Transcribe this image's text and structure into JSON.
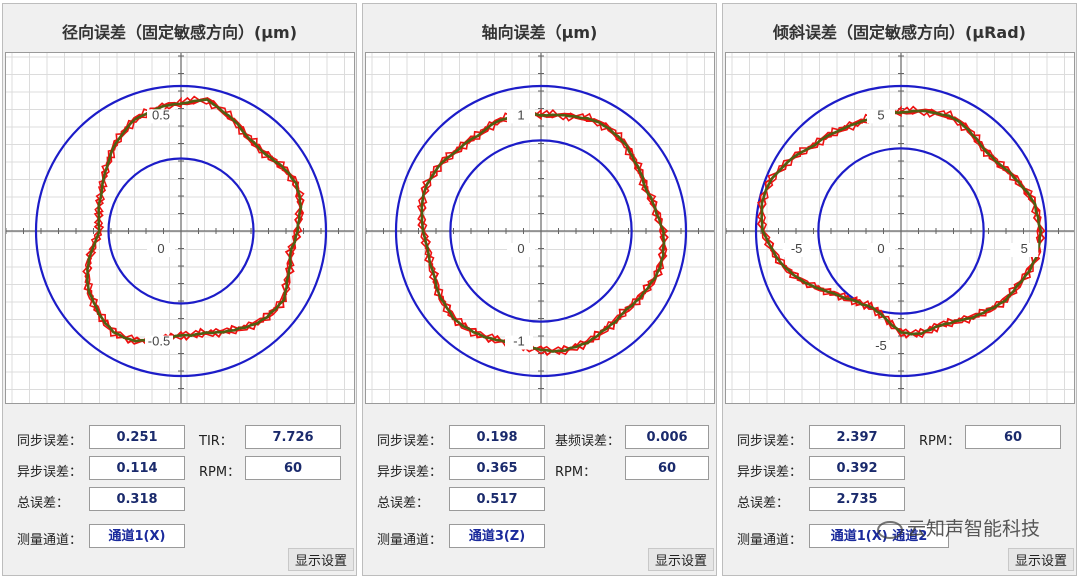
{
  "colors": {
    "ring": "#1c1cc8",
    "trace_red": "#ee1111",
    "trace_dark": "#4f5f12",
    "value_text": "#1a2a6c",
    "panel_bg": "#f0f0f0"
  },
  "panels": [
    {
      "title": "径向误差（固定敏感方向）(μm)",
      "chart_data": {
        "type": "polar",
        "axis_range": [
          -0.75,
          0.75
        ],
        "rings": [
          0.5,
          1.0
        ],
        "tick_labels": [
          "0.5",
          "0",
          "-0.5"
        ],
        "series": [
          {
            "values_r": [
              0.88,
              0.92,
              0.86,
              0.8,
              0.78,
              0.82,
              0.86,
              0.84,
              0.8,
              0.77,
              0.8,
              0.85,
              0.84,
              0.8,
              0.75,
              0.72,
              0.72,
              0.76,
              0.82,
              0.84,
              0.8,
              0.76,
              0.7,
              0.62,
              0.56,
              0.58,
              0.6,
              0.64,
              0.7,
              0.77,
              0.83,
              0.86
            ]
          }
        ]
      },
      "stats": [
        {
          "label": "同步误差：",
          "value": "0.251"
        },
        {
          "label": "异步误差：",
          "value": "0.114"
        },
        {
          "label": "总误差：",
          "value": "0.318"
        }
      ],
      "side": [
        {
          "label": "TIR：",
          "value": "7.726"
        },
        {
          "label": "RPM：",
          "value": "60"
        }
      ],
      "channel_label": "测量通道：",
      "channel_value": "通道1(X)",
      "settings_button": "显示设置"
    },
    {
      "title": "轴向误差（μm)",
      "chart_data": {
        "type": "polar",
        "axis_range": [
          -1.6,
          1.6
        ],
        "rings": [
          0.625,
          1.0
        ],
        "tick_labels": [
          "1",
          "0",
          "-1"
        ],
        "series": [
          {
            "values_r": [
              0.8,
              0.81,
              0.84,
              0.85,
              0.83,
              0.8,
              0.78,
              0.8,
              0.84,
              0.86,
              0.85,
              0.82,
              0.8,
              0.81,
              0.83,
              0.84,
              0.82,
              0.8,
              0.81,
              0.84,
              0.85,
              0.83,
              0.8,
              0.79,
              0.81,
              0.84,
              0.85,
              0.83,
              0.8,
              0.79,
              0.81,
              0.82
            ]
          }
        ]
      },
      "stats": [
        {
          "label": "同步误差：",
          "value": "0.198"
        },
        {
          "label": "异步误差：",
          "value": "0.365"
        },
        {
          "label": "总误差：",
          "value": "0.517"
        }
      ],
      "side": [
        {
          "label": "基频误差：",
          "value": "0.006"
        },
        {
          "label": "RPM：",
          "value": "60"
        }
      ],
      "channel_label": "测量通道：",
      "channel_value": "通道3(Z)",
      "settings_button": "显示设置"
    },
    {
      "title": "倾斜误差（固定敏感方向）(μRad)",
      "chart_data": {
        "type": "polar",
        "axis_range": [
          -7.5,
          7.5
        ],
        "rings": [
          0.57,
          1.0
        ],
        "tick_labels": [
          "5",
          "-5",
          "0",
          "5",
          "-5"
        ],
        "series": [
          {
            "values_r": [
              0.82,
              0.84,
              0.86,
              0.84,
              0.8,
              0.82,
              0.88,
              0.94,
              0.96,
              0.95,
              0.9,
              0.86,
              0.8,
              0.74,
              0.7,
              0.72,
              0.7,
              0.6,
              0.56,
              0.58,
              0.62,
              0.7,
              0.8,
              0.88,
              0.95,
              0.98,
              0.96,
              0.9,
              0.84,
              0.82,
              0.8,
              0.81
            ]
          }
        ]
      },
      "stats": [
        {
          "label": "同步误差：",
          "value": "2.397"
        },
        {
          "label": "异步误差：",
          "value": "0.392"
        },
        {
          "label": "总误差：",
          "value": "2.735"
        }
      ],
      "side": [
        {
          "label": "RPM：",
          "value": "60"
        }
      ],
      "channel_label": "测量通道：",
      "channel_value": "通道1(X) 通道2",
      "settings_button": "显示设置"
    }
  ],
  "watermark": "云知声智能科技",
  "watermark_icon": "wechat-icon"
}
